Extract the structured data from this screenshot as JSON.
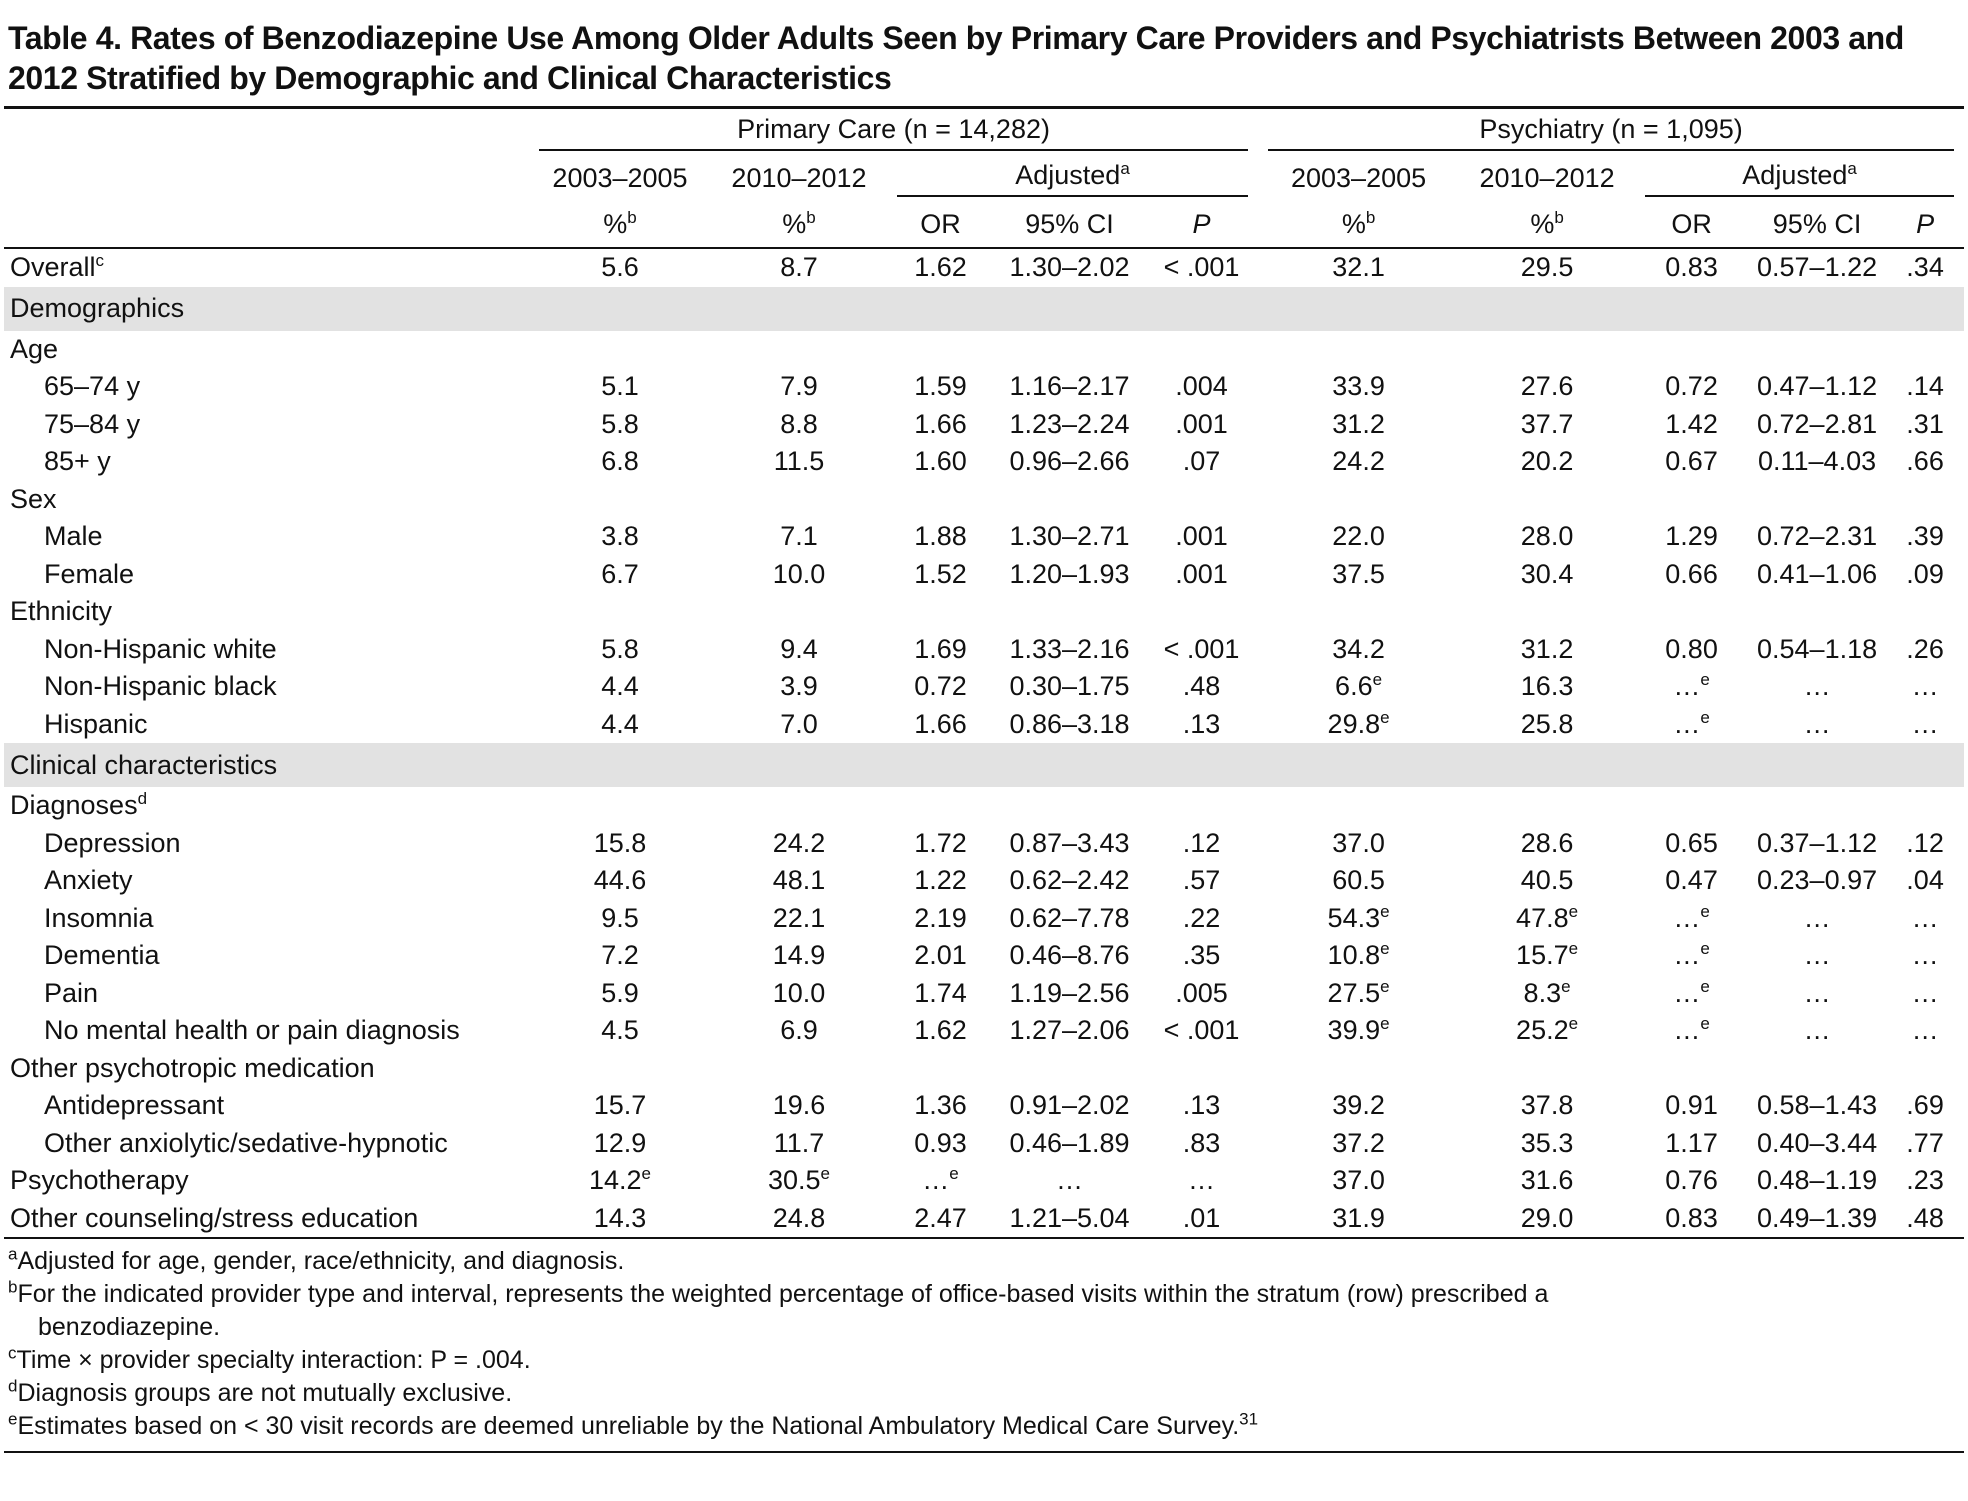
{
  "title": "Table 4. Rates of Benzodiazepine Use Among Older Adults Seen by Primary Care Providers and Psychiatrists Between 2003 and 2012 Stratified by Demographic and Clinical Characteristics",
  "header": {
    "groups": [
      "Primary Care (n = 14,282)",
      "Psychiatry (n = 1,095)"
    ],
    "periods": [
      "2003–2005",
      "2010–2012"
    ],
    "adjusted": {
      "text": "Adjusted",
      "sup": "a"
    },
    "columns": [
      {
        "text": "%",
        "sup": "b"
      },
      "OR",
      "95% CI",
      "P"
    ]
  },
  "rows": [
    {
      "kind": "row",
      "label": {
        "text": "Overall",
        "sup": "c"
      },
      "cells": [
        "5.6",
        "8.7",
        "1.62",
        "1.30–2.02",
        "< .001",
        "32.1",
        "29.5",
        "0.83",
        "0.57–1.22",
        ".34"
      ]
    },
    {
      "kind": "section",
      "label": "Demographics"
    },
    {
      "kind": "group",
      "label": "Age"
    },
    {
      "kind": "item",
      "label": "65–74 y",
      "cells": [
        "5.1",
        "7.9",
        "1.59",
        "1.16–2.17",
        ".004",
        "33.9",
        "27.6",
        "0.72",
        "0.47–1.12",
        ".14"
      ]
    },
    {
      "kind": "item",
      "label": "75–84 y",
      "cells": [
        "5.8",
        "8.8",
        "1.66",
        "1.23–2.24",
        ".001",
        "31.2",
        "37.7",
        "1.42",
        "0.72–2.81",
        ".31"
      ]
    },
    {
      "kind": "item",
      "label": "85+ y",
      "cells": [
        "6.8",
        "11.5",
        "1.60",
        "0.96–2.66",
        ".07",
        "24.2",
        "20.2",
        "0.67",
        "0.11–4.03",
        ".66"
      ]
    },
    {
      "kind": "group",
      "label": "Sex"
    },
    {
      "kind": "item",
      "label": "Male",
      "cells": [
        "3.8",
        "7.1",
        "1.88",
        "1.30–2.71",
        ".001",
        "22.0",
        "28.0",
        "1.29",
        "0.72–2.31",
        ".39"
      ]
    },
    {
      "kind": "item",
      "label": "Female",
      "cells": [
        "6.7",
        "10.0",
        "1.52",
        "1.20–1.93",
        ".001",
        "37.5",
        "30.4",
        "0.66",
        "0.41–1.06",
        ".09"
      ]
    },
    {
      "kind": "group",
      "label": "Ethnicity"
    },
    {
      "kind": "item",
      "label": "Non-Hispanic white",
      "cells": [
        "5.8",
        "9.4",
        "1.69",
        "1.33–2.16",
        "< .001",
        "34.2",
        "31.2",
        "0.80",
        "0.54–1.18",
        ".26"
      ]
    },
    {
      "kind": "item",
      "label": "Non-Hispanic black",
      "cells": [
        "4.4",
        "3.9",
        "0.72",
        "0.30–1.75",
        ".48",
        {
          "text": "6.6",
          "sup": "e"
        },
        "16.3",
        {
          "text": "…",
          "sup": "e"
        },
        "…",
        "…"
      ]
    },
    {
      "kind": "item",
      "label": "Hispanic",
      "cells": [
        "4.4",
        "7.0",
        "1.66",
        "0.86–3.18",
        ".13",
        {
          "text": "29.8",
          "sup": "e"
        },
        "25.8",
        {
          "text": "…",
          "sup": "e"
        },
        "…",
        "…"
      ]
    },
    {
      "kind": "section",
      "label": "Clinical characteristics"
    },
    {
      "kind": "group",
      "label": {
        "text": "Diagnoses",
        "sup": "d"
      }
    },
    {
      "kind": "item",
      "label": "Depression",
      "cells": [
        "15.8",
        "24.2",
        "1.72",
        "0.87–3.43",
        ".12",
        "37.0",
        "28.6",
        "0.65",
        "0.37–1.12",
        ".12"
      ]
    },
    {
      "kind": "item",
      "label": "Anxiety",
      "cells": [
        "44.6",
        "48.1",
        "1.22",
        "0.62–2.42",
        ".57",
        "60.5",
        "40.5",
        "0.47",
        "0.23–0.97",
        ".04"
      ]
    },
    {
      "kind": "item",
      "label": "Insomnia",
      "cells": [
        "9.5",
        "22.1",
        "2.19",
        "0.62–7.78",
        ".22",
        {
          "text": "54.3",
          "sup": "e"
        },
        {
          "text": "47.8",
          "sup": "e"
        },
        {
          "text": "…",
          "sup": "e"
        },
        "…",
        "…"
      ]
    },
    {
      "kind": "item",
      "label": "Dementia",
      "cells": [
        "7.2",
        "14.9",
        "2.01",
        "0.46–8.76",
        ".35",
        {
          "text": "10.8",
          "sup": "e"
        },
        {
          "text": "15.7",
          "sup": "e"
        },
        {
          "text": "…",
          "sup": "e"
        },
        "…",
        "…"
      ]
    },
    {
      "kind": "item",
      "label": "Pain",
      "cells": [
        "5.9",
        "10.0",
        "1.74",
        "1.19–2.56",
        ".005",
        {
          "text": "27.5",
          "sup": "e"
        },
        {
          "text": "8.3",
          "sup": "e"
        },
        {
          "text": "…",
          "sup": "e"
        },
        "…",
        "…"
      ]
    },
    {
      "kind": "item",
      "label": "No mental health or pain diagnosis",
      "cells": [
        "4.5",
        "6.9",
        "1.62",
        "1.27–2.06",
        "< .001",
        {
          "text": "39.9",
          "sup": "e"
        },
        {
          "text": "25.2",
          "sup": "e"
        },
        {
          "text": "…",
          "sup": "e"
        },
        "…",
        "…"
      ]
    },
    {
      "kind": "group",
      "label": "Other psychotropic medication"
    },
    {
      "kind": "item",
      "label": "Antidepressant",
      "cells": [
        "15.7",
        "19.6",
        "1.36",
        "0.91–2.02",
        ".13",
        "39.2",
        "37.8",
        "0.91",
        "0.58–1.43",
        ".69"
      ]
    },
    {
      "kind": "item",
      "label": "Other anxiolytic/sedative-hypnotic",
      "cells": [
        "12.9",
        "11.7",
        "0.93",
        "0.46–1.89",
        ".83",
        "37.2",
        "35.3",
        "1.17",
        "0.40–3.44",
        ".77"
      ]
    },
    {
      "kind": "row",
      "label": "Psychotherapy",
      "cells": [
        {
          "text": "14.2",
          "sup": "e"
        },
        {
          "text": "30.5",
          "sup": "e"
        },
        {
          "text": "…",
          "sup": "e"
        },
        "…",
        "…",
        "37.0",
        "31.6",
        "0.76",
        "0.48–1.19",
        ".23"
      ]
    },
    {
      "kind": "row",
      "label": "Other counseling/stress education",
      "cells": [
        "14.3",
        "24.8",
        "2.47",
        "1.21–5.04",
        ".01",
        "31.9",
        "29.0",
        "0.83",
        "0.49–1.39",
        ".48"
      ]
    }
  ],
  "footnotes": [
    {
      "sup": "a",
      "text": "Adjusted for age, gender, race/ethnicity, and diagnosis."
    },
    {
      "sup": "b",
      "text": "For the indicated provider type and interval, represents the weighted percentage of office-based visits within the stratum (row) prescribed a",
      "continued": "benzodiazepine."
    },
    {
      "sup": "c",
      "text": "Time × provider specialty interaction: P = .004."
    },
    {
      "sup": "d",
      "text": "Diagnosis groups are not mutually exclusive."
    },
    {
      "sup": "e",
      "text": "Estimates based on < 30 visit records are deemed unreliable by the National Ambulatory Medical Care Survey.",
      "ref": "31"
    }
  ]
}
